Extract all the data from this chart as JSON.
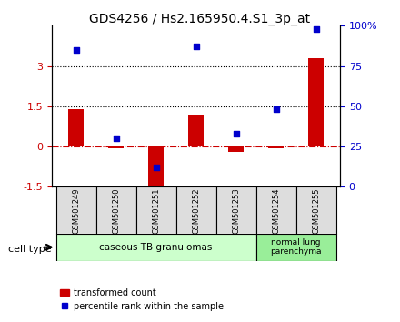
{
  "title": "GDS4256 / Hs2.165950.4.S1_3p_at",
  "samples": [
    "GSM501249",
    "GSM501250",
    "GSM501251",
    "GSM501252",
    "GSM501253",
    "GSM501254",
    "GSM501255"
  ],
  "transformed_count": [
    1.4,
    -0.05,
    -1.7,
    1.2,
    -0.2,
    -0.05,
    3.3
  ],
  "percentile_rank": [
    85,
    30,
    12,
    87,
    33,
    48,
    98
  ],
  "ylim_left": [
    -1.5,
    4.5
  ],
  "ylim_right": [
    0,
    100
  ],
  "yticks_left": [
    -1.5,
    0,
    1.5,
    3
  ],
  "yticks_right": [
    0,
    25,
    50,
    75,
    100
  ],
  "ytick_labels_left": [
    "-1.5",
    "0",
    "1.5",
    "3"
  ],
  "ytick_labels_right": [
    "0",
    "25",
    "50",
    "75",
    "100%"
  ],
  "hlines": [
    1.5,
    3.0
  ],
  "hline_y0": 0,
  "bar_color": "#cc0000",
  "dot_color": "#0000cc",
  "background_color": "#ffffff",
  "group1_samples": [
    "GSM501249",
    "GSM501250",
    "GSM501251",
    "GSM501252",
    "GSM501253"
  ],
  "group2_samples": [
    "GSM501254",
    "GSM501255"
  ],
  "group1_label": "caseous TB granulomas",
  "group2_label": "normal lung\nparenchyma",
  "group1_color": "#ccffcc",
  "group2_color": "#99ee99",
  "cell_type_label": "cell type",
  "legend_bar_label": "transformed count",
  "legend_dot_label": "percentile rank within the sample",
  "bar_width": 0.4
}
